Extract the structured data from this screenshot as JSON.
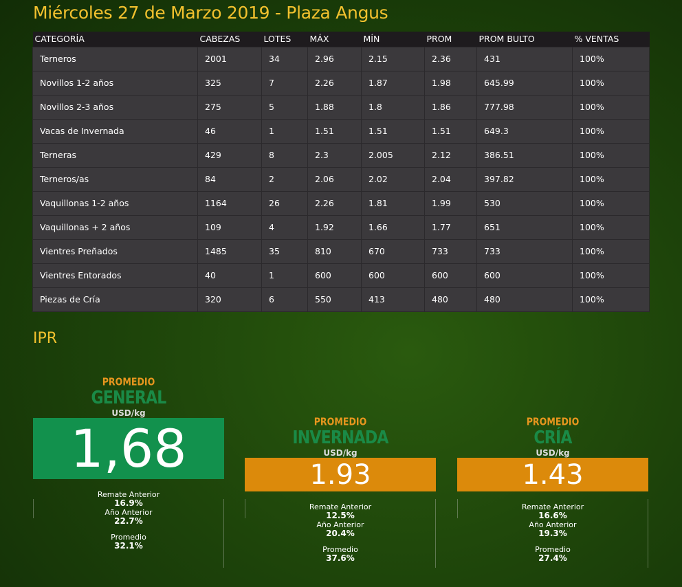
{
  "title": "Miércoles 27 de Marzo 2019 - Plaza Angus",
  "table": {
    "headers": [
      "CATEGORÍA",
      "CABEZAS",
      "LOTES",
      "MÁX",
      "MÍN",
      "PROM",
      "PROM BULTO",
      "% VENTAS"
    ],
    "rows": [
      [
        "Terneros",
        "2001",
        "34",
        "2.96",
        "2.15",
        "2.36",
        "431",
        "100%"
      ],
      [
        "Novillos 1-2 años",
        "325",
        "7",
        "2.26",
        "1.87",
        "1.98",
        "645.99",
        "100%"
      ],
      [
        "Novillos 2-3 años",
        "275",
        "5",
        "1.88",
        "1.8",
        "1.86",
        "777.98",
        "100%"
      ],
      [
        "Vacas de Invernada",
        "46",
        "1",
        "1.51",
        "1.51",
        "1.51",
        "649.3",
        "100%"
      ],
      [
        "Terneras",
        "429",
        "8",
        "2.3",
        "2.005",
        "2.12",
        "386.51",
        "100%"
      ],
      [
        "Terneros/as",
        "84",
        "2",
        "2.06",
        "2.02",
        "2.04",
        "397.82",
        "100%"
      ],
      [
        "Vaquillonas 1-2 años",
        "1164",
        "26",
        "2.26",
        "1.81",
        "1.99",
        "530",
        "100%"
      ],
      [
        "Vaquillonas + 2 años",
        "109",
        "4",
        "1.92",
        "1.66",
        "1.77",
        "651",
        "100%"
      ],
      [
        "Vientres Preñados",
        "1485",
        "35",
        "810",
        "670",
        "733",
        "733",
        "100%"
      ],
      [
        "Vientres Entorados",
        "40",
        "1",
        "600",
        "600",
        "600",
        "600",
        "100%"
      ],
      [
        "Piezas de Cría",
        "320",
        "6",
        "550",
        "413",
        "480",
        "480",
        "100%"
      ]
    ]
  },
  "ipr": {
    "title": "IPR",
    "panels": [
      {
        "prom": "PROMEDIO",
        "name": "GENERAL",
        "unit": "USD/kg",
        "value": "1,68",
        "color": "#12914d",
        "l1": "Remate Anterior",
        "v1": "16.9%",
        "l2": "Año Anterior",
        "v2": "22.7%",
        "l3": "Promedio",
        "v3": "32.1%"
      },
      {
        "prom": "PROMEDIO",
        "name": "INVERNADA",
        "unit": "USD/kg",
        "value": "1.93",
        "color": "#dc8a0b",
        "l1": "Remate Anterior",
        "v1": "12.5%",
        "l2": "Año Anterior",
        "v2": "20.4%",
        "l3": "Promedio",
        "v3": "37.6%"
      },
      {
        "prom": "PROMEDIO",
        "name": "CRÍA",
        "unit": "USD/kg",
        "value": "1.43",
        "color": "#dc8a0b",
        "l1": "Remate Anterior",
        "v1": "16.6%",
        "l2": "Año Anterior",
        "v2": "19.3%",
        "l3": "Promedio",
        "v3": "27.4%"
      }
    ]
  }
}
